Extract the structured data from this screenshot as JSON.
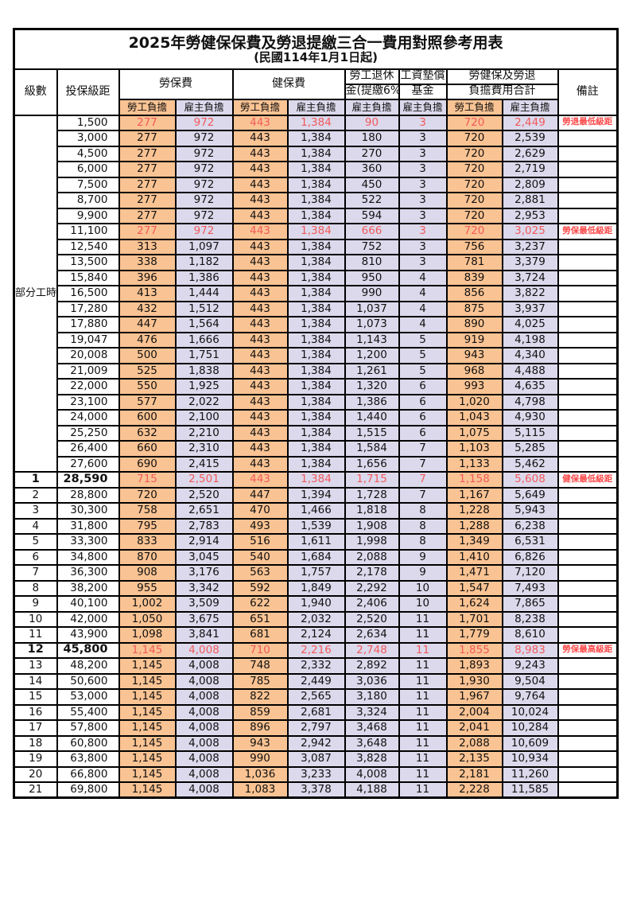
{
  "table": {
    "title": "2025年勞健保保費及勞退提繳三合一費用對照參考用表",
    "subtitle": "(民國114年1月1日起)",
    "headers": {
      "level": "級數",
      "salary": "投保級距",
      "labor_fee": "勞保費",
      "health_fee": "健保費",
      "pension_line1": "勞工退休",
      "pension_line2": "金(提繳6%)",
      "fund_line1": "工資墊償",
      "fund_line2": "基金",
      "total_line1": "勞健保及勞退",
      "total_line2": "負擔費用合計",
      "note": "備註",
      "employee": "勞工負擔",
      "employer": "雇主負擔"
    },
    "part_time_label": "部分工時",
    "colors": {
      "employee_bg": "#FAC393",
      "employer_bg": "#DCD9EC",
      "highlight_red": "#F15B5B",
      "note_red": "#FB4949"
    },
    "rows": [
      {
        "section": "part",
        "level": "",
        "salary": "1,500",
        "li_emp": "277",
        "li_er": "972",
        "hi_emp": "443",
        "hi_er": "1,384",
        "pension": "90",
        "fund": "3",
        "tot_emp": "720",
        "tot_er": "2,449",
        "note": "勞退最低級距",
        "red": true,
        "bold": false
      },
      {
        "section": "part",
        "level": "",
        "salary": "3,000",
        "li_emp": "277",
        "li_er": "972",
        "hi_emp": "443",
        "hi_er": "1,384",
        "pension": "180",
        "fund": "3",
        "tot_emp": "720",
        "tot_er": "2,539",
        "note": "",
        "red": false,
        "bold": false
      },
      {
        "section": "part",
        "level": "",
        "salary": "4,500",
        "li_emp": "277",
        "li_er": "972",
        "hi_emp": "443",
        "hi_er": "1,384",
        "pension": "270",
        "fund": "3",
        "tot_emp": "720",
        "tot_er": "2,629",
        "note": "",
        "red": false,
        "bold": false
      },
      {
        "section": "part",
        "level": "",
        "salary": "6,000",
        "li_emp": "277",
        "li_er": "972",
        "hi_emp": "443",
        "hi_er": "1,384",
        "pension": "360",
        "fund": "3",
        "tot_emp": "720",
        "tot_er": "2,719",
        "note": "",
        "red": false,
        "bold": false
      },
      {
        "section": "part",
        "level": "",
        "salary": "7,500",
        "li_emp": "277",
        "li_er": "972",
        "hi_emp": "443",
        "hi_er": "1,384",
        "pension": "450",
        "fund": "3",
        "tot_emp": "720",
        "tot_er": "2,809",
        "note": "",
        "red": false,
        "bold": false
      },
      {
        "section": "part",
        "level": "",
        "salary": "8,700",
        "li_emp": "277",
        "li_er": "972",
        "hi_emp": "443",
        "hi_er": "1,384",
        "pension": "522",
        "fund": "3",
        "tot_emp": "720",
        "tot_er": "2,881",
        "note": "",
        "red": false,
        "bold": false
      },
      {
        "section": "part",
        "level": "",
        "salary": "9,900",
        "li_emp": "277",
        "li_er": "972",
        "hi_emp": "443",
        "hi_er": "1,384",
        "pension": "594",
        "fund": "3",
        "tot_emp": "720",
        "tot_er": "2,953",
        "note": "",
        "red": false,
        "bold": false
      },
      {
        "section": "part",
        "level": "",
        "salary": "11,100",
        "li_emp": "277",
        "li_er": "972",
        "hi_emp": "443",
        "hi_er": "1,384",
        "pension": "666",
        "fund": "3",
        "tot_emp": "720",
        "tot_er": "3,025",
        "note": "勞保最低級距",
        "red": true,
        "bold": false
      },
      {
        "section": "part",
        "level": "",
        "salary": "12,540",
        "li_emp": "313",
        "li_er": "1,097",
        "hi_emp": "443",
        "hi_er": "1,384",
        "pension": "752",
        "fund": "3",
        "tot_emp": "756",
        "tot_er": "3,237",
        "note": "",
        "red": false,
        "bold": false
      },
      {
        "section": "part",
        "level": "",
        "salary": "13,500",
        "li_emp": "338",
        "li_er": "1,182",
        "hi_emp": "443",
        "hi_er": "1,384",
        "pension": "810",
        "fund": "3",
        "tot_emp": "781",
        "tot_er": "3,379",
        "note": "",
        "red": false,
        "bold": false
      },
      {
        "section": "part",
        "level": "",
        "salary": "15,840",
        "li_emp": "396",
        "li_er": "1,386",
        "hi_emp": "443",
        "hi_er": "1,384",
        "pension": "950",
        "fund": "4",
        "tot_emp": "839",
        "tot_er": "3,724",
        "note": "",
        "red": false,
        "bold": false
      },
      {
        "section": "part",
        "level": "",
        "salary": "16,500",
        "li_emp": "413",
        "li_er": "1,444",
        "hi_emp": "443",
        "hi_er": "1,384",
        "pension": "990",
        "fund": "4",
        "tot_emp": "856",
        "tot_er": "3,822",
        "note": "",
        "red": false,
        "bold": false
      },
      {
        "section": "part",
        "level": "",
        "salary": "17,280",
        "li_emp": "432",
        "li_er": "1,512",
        "hi_emp": "443",
        "hi_er": "1,384",
        "pension": "1,037",
        "fund": "4",
        "tot_emp": "875",
        "tot_er": "3,937",
        "note": "",
        "red": false,
        "bold": false
      },
      {
        "section": "part",
        "level": "",
        "salary": "17,880",
        "li_emp": "447",
        "li_er": "1,564",
        "hi_emp": "443",
        "hi_er": "1,384",
        "pension": "1,073",
        "fund": "4",
        "tot_emp": "890",
        "tot_er": "4,025",
        "note": "",
        "red": false,
        "bold": false
      },
      {
        "section": "part",
        "level": "",
        "salary": "19,047",
        "li_emp": "476",
        "li_er": "1,666",
        "hi_emp": "443",
        "hi_er": "1,384",
        "pension": "1,143",
        "fund": "5",
        "tot_emp": "919",
        "tot_er": "4,198",
        "note": "",
        "red": false,
        "bold": false
      },
      {
        "section": "part",
        "level": "",
        "salary": "20,008",
        "li_emp": "500",
        "li_er": "1,751",
        "hi_emp": "443",
        "hi_er": "1,384",
        "pension": "1,200",
        "fund": "5",
        "tot_emp": "943",
        "tot_er": "4,340",
        "note": "",
        "red": false,
        "bold": false
      },
      {
        "section": "part",
        "level": "",
        "salary": "21,009",
        "li_emp": "525",
        "li_er": "1,838",
        "hi_emp": "443",
        "hi_er": "1,384",
        "pension": "1,261",
        "fund": "5",
        "tot_emp": "968",
        "tot_er": "4,488",
        "note": "",
        "red": false,
        "bold": false
      },
      {
        "section": "part",
        "level": "",
        "salary": "22,000",
        "li_emp": "550",
        "li_er": "1,925",
        "hi_emp": "443",
        "hi_er": "1,384",
        "pension": "1,320",
        "fund": "6",
        "tot_emp": "993",
        "tot_er": "4,635",
        "note": "",
        "red": false,
        "bold": false
      },
      {
        "section": "part",
        "level": "",
        "salary": "23,100",
        "li_emp": "577",
        "li_er": "2,022",
        "hi_emp": "443",
        "hi_er": "1,384",
        "pension": "1,386",
        "fund": "6",
        "tot_emp": "1,020",
        "tot_er": "4,798",
        "note": "",
        "red": false,
        "bold": false
      },
      {
        "section": "part",
        "level": "",
        "salary": "24,000",
        "li_emp": "600",
        "li_er": "2,100",
        "hi_emp": "443",
        "hi_er": "1,384",
        "pension": "1,440",
        "fund": "6",
        "tot_emp": "1,043",
        "tot_er": "4,930",
        "note": "",
        "red": false,
        "bold": false
      },
      {
        "section": "part",
        "level": "",
        "salary": "25,250",
        "li_emp": "632",
        "li_er": "2,210",
        "hi_emp": "443",
        "hi_er": "1,384",
        "pension": "1,515",
        "fund": "6",
        "tot_emp": "1,075",
        "tot_er": "5,115",
        "note": "",
        "red": false,
        "bold": false
      },
      {
        "section": "part",
        "level": "",
        "salary": "26,400",
        "li_emp": "660",
        "li_er": "2,310",
        "hi_emp": "443",
        "hi_er": "1,384",
        "pension": "1,584",
        "fund": "7",
        "tot_emp": "1,103",
        "tot_er": "5,285",
        "note": "",
        "red": false,
        "bold": false
      },
      {
        "section": "part",
        "level": "",
        "salary": "27,600",
        "li_emp": "690",
        "li_er": "2,415",
        "hi_emp": "443",
        "hi_er": "1,384",
        "pension": "1,656",
        "fund": "7",
        "tot_emp": "1,133",
        "tot_er": "5,462",
        "note": "",
        "red": false,
        "bold": false
      },
      {
        "section": "level",
        "level": "1",
        "salary": "28,590",
        "li_emp": "715",
        "li_er": "2,501",
        "hi_emp": "443",
        "hi_er": "1,384",
        "pension": "1,715",
        "fund": "7",
        "tot_emp": "1,158",
        "tot_er": "5,608",
        "note": "健保最低級距",
        "red": true,
        "bold": true
      },
      {
        "section": "level",
        "level": "2",
        "salary": "28,800",
        "li_emp": "720",
        "li_er": "2,520",
        "hi_emp": "447",
        "hi_er": "1,394",
        "pension": "1,728",
        "fund": "7",
        "tot_emp": "1,167",
        "tot_er": "5,649",
        "note": "",
        "red": false,
        "bold": false
      },
      {
        "section": "level",
        "level": "3",
        "salary": "30,300",
        "li_emp": "758",
        "li_er": "2,651",
        "hi_emp": "470",
        "hi_er": "1,466",
        "pension": "1,818",
        "fund": "8",
        "tot_emp": "1,228",
        "tot_er": "5,943",
        "note": "",
        "red": false,
        "bold": false
      },
      {
        "section": "level",
        "level": "4",
        "salary": "31,800",
        "li_emp": "795",
        "li_er": "2,783",
        "hi_emp": "493",
        "hi_er": "1,539",
        "pension": "1,908",
        "fund": "8",
        "tot_emp": "1,288",
        "tot_er": "6,238",
        "note": "",
        "red": false,
        "bold": false
      },
      {
        "section": "level",
        "level": "5",
        "salary": "33,300",
        "li_emp": "833",
        "li_er": "2,914",
        "hi_emp": "516",
        "hi_er": "1,611",
        "pension": "1,998",
        "fund": "8",
        "tot_emp": "1,349",
        "tot_er": "6,531",
        "note": "",
        "red": false,
        "bold": false
      },
      {
        "section": "level",
        "level": "6",
        "salary": "34,800",
        "li_emp": "870",
        "li_er": "3,045",
        "hi_emp": "540",
        "hi_er": "1,684",
        "pension": "2,088",
        "fund": "9",
        "tot_emp": "1,410",
        "tot_er": "6,826",
        "note": "",
        "red": false,
        "bold": false
      },
      {
        "section": "level",
        "level": "7",
        "salary": "36,300",
        "li_emp": "908",
        "li_er": "3,176",
        "hi_emp": "563",
        "hi_er": "1,757",
        "pension": "2,178",
        "fund": "9",
        "tot_emp": "1,471",
        "tot_er": "7,120",
        "note": "",
        "red": false,
        "bold": false
      },
      {
        "section": "level",
        "level": "8",
        "salary": "38,200",
        "li_emp": "955",
        "li_er": "3,342",
        "hi_emp": "592",
        "hi_er": "1,849",
        "pension": "2,292",
        "fund": "10",
        "tot_emp": "1,547",
        "tot_er": "7,493",
        "note": "",
        "red": false,
        "bold": false
      },
      {
        "section": "level",
        "level": "9",
        "salary": "40,100",
        "li_emp": "1,002",
        "li_er": "3,509",
        "hi_emp": "622",
        "hi_er": "1,940",
        "pension": "2,406",
        "fund": "10",
        "tot_emp": "1,624",
        "tot_er": "7,865",
        "note": "",
        "red": false,
        "bold": false
      },
      {
        "section": "level",
        "level": "10",
        "salary": "42,000",
        "li_emp": "1,050",
        "li_er": "3,675",
        "hi_emp": "651",
        "hi_er": "2,032",
        "pension": "2,520",
        "fund": "11",
        "tot_emp": "1,701",
        "tot_er": "8,238",
        "note": "",
        "red": false,
        "bold": false
      },
      {
        "section": "level",
        "level": "11",
        "salary": "43,900",
        "li_emp": "1,098",
        "li_er": "3,841",
        "hi_emp": "681",
        "hi_er": "2,124",
        "pension": "2,634",
        "fund": "11",
        "tot_emp": "1,779",
        "tot_er": "8,610",
        "note": "",
        "red": false,
        "bold": false
      },
      {
        "section": "level",
        "level": "12",
        "salary": "45,800",
        "li_emp": "1,145",
        "li_er": "4,008",
        "hi_emp": "710",
        "hi_er": "2,216",
        "pension": "2,748",
        "fund": "11",
        "tot_emp": "1,855",
        "tot_er": "8,983",
        "note": "勞保最高級距",
        "red": true,
        "bold": true
      },
      {
        "section": "level",
        "level": "13",
        "salary": "48,200",
        "li_emp": "1,145",
        "li_er": "4,008",
        "hi_emp": "748",
        "hi_er": "2,332",
        "pension": "2,892",
        "fund": "11",
        "tot_emp": "1,893",
        "tot_er": "9,243",
        "note": "",
        "red": false,
        "bold": false
      },
      {
        "section": "level",
        "level": "14",
        "salary": "50,600",
        "li_emp": "1,145",
        "li_er": "4,008",
        "hi_emp": "785",
        "hi_er": "2,449",
        "pension": "3,036",
        "fund": "11",
        "tot_emp": "1,930",
        "tot_er": "9,504",
        "note": "",
        "red": false,
        "bold": false
      },
      {
        "section": "level",
        "level": "15",
        "salary": "53,000",
        "li_emp": "1,145",
        "li_er": "4,008",
        "hi_emp": "822",
        "hi_er": "2,565",
        "pension": "3,180",
        "fund": "11",
        "tot_emp": "1,967",
        "tot_er": "9,764",
        "note": "",
        "red": false,
        "bold": false
      },
      {
        "section": "level",
        "level": "16",
        "salary": "55,400",
        "li_emp": "1,145",
        "li_er": "4,008",
        "hi_emp": "859",
        "hi_er": "2,681",
        "pension": "3,324",
        "fund": "11",
        "tot_emp": "2,004",
        "tot_er": "10,024",
        "note": "",
        "red": false,
        "bold": false
      },
      {
        "section": "level",
        "level": "17",
        "salary": "57,800",
        "li_emp": "1,145",
        "li_er": "4,008",
        "hi_emp": "896",
        "hi_er": "2,797",
        "pension": "3,468",
        "fund": "11",
        "tot_emp": "2,041",
        "tot_er": "10,284",
        "note": "",
        "red": false,
        "bold": false
      },
      {
        "section": "level",
        "level": "18",
        "salary": "60,800",
        "li_emp": "1,145",
        "li_er": "4,008",
        "hi_emp": "943",
        "hi_er": "2,942",
        "pension": "3,648",
        "fund": "11",
        "tot_emp": "2,088",
        "tot_er": "10,609",
        "note": "",
        "red": false,
        "bold": false
      },
      {
        "section": "level",
        "level": "19",
        "salary": "63,800",
        "li_emp": "1,145",
        "li_er": "4,008",
        "hi_emp": "990",
        "hi_er": "3,087",
        "pension": "3,828",
        "fund": "11",
        "tot_emp": "2,135",
        "tot_er": "10,934",
        "note": "",
        "red": false,
        "bold": false
      },
      {
        "section": "level",
        "level": "20",
        "salary": "66,800",
        "li_emp": "1,145",
        "li_er": "4,008",
        "hi_emp": "1,036",
        "hi_er": "3,233",
        "pension": "4,008",
        "fund": "11",
        "tot_emp": "2,181",
        "tot_er": "11,260",
        "note": "",
        "red": false,
        "bold": false
      },
      {
        "section": "level",
        "level": "21",
        "salary": "69,800",
        "li_emp": "1,145",
        "li_er": "4,008",
        "hi_emp": "1,083",
        "hi_er": "3,378",
        "pension": "4,188",
        "fund": "11",
        "tot_emp": "2,228",
        "tot_er": "11,585",
        "note": "",
        "red": false,
        "bold": false
      }
    ]
  }
}
